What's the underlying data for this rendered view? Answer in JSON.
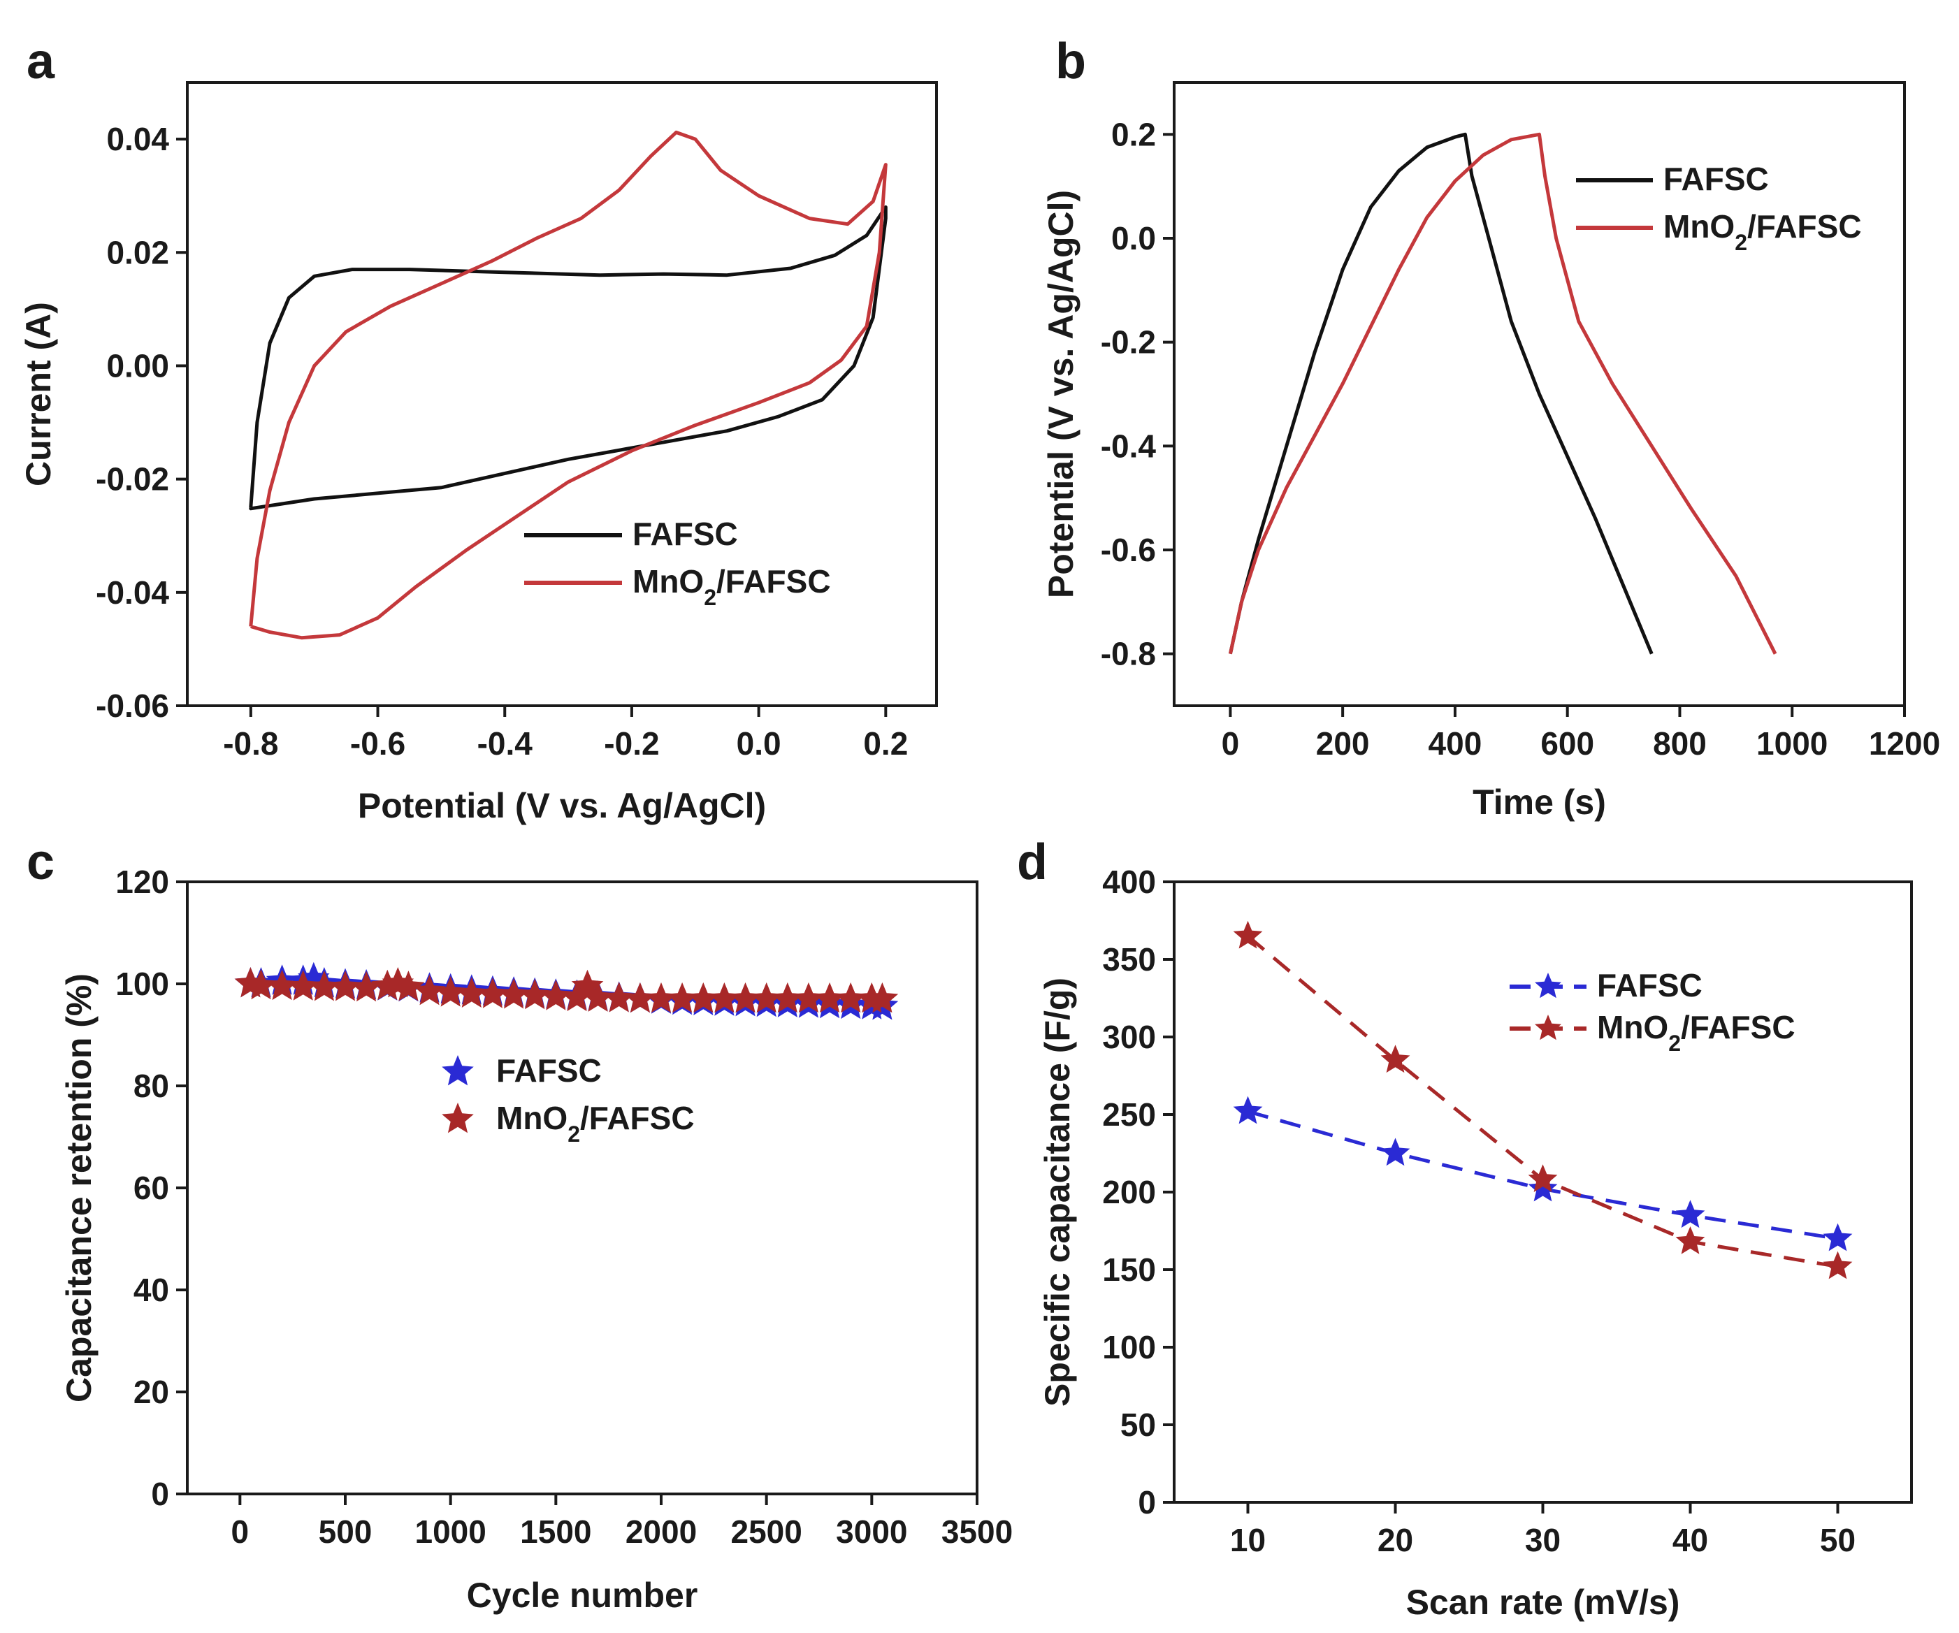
{
  "colors": {
    "fafsc_line": "#111111",
    "mno2_line": "#c4383b",
    "fafsc_marker": "#2a2ad4",
    "mno2_marker": "#a82828",
    "axis": "#1a1a1a"
  },
  "chart_data": [
    {
      "panel": "a",
      "type": "line",
      "xlabel": "Potential (V vs. Ag/AgCl)",
      "ylabel": "Current (A)",
      "xlim": [
        -0.9,
        0.28
      ],
      "ylim": [
        -0.06,
        0.05
      ],
      "xticks": [
        -0.8,
        -0.6,
        -0.4,
        -0.2,
        0.0,
        0.2
      ],
      "xtick_labels": [
        "-0.8",
        "-0.6",
        "-0.4",
        "-0.2",
        "0.0",
        "0.2"
      ],
      "yticks": [
        -0.06,
        -0.04,
        -0.02,
        0.0,
        0.02,
        0.04
      ],
      "ytick_labels": [
        "-0.06",
        "-0.04",
        "-0.02",
        "0.00",
        "0.02",
        "0.04"
      ],
      "legend_position": "bottom-right",
      "series": [
        {
          "name": "FAFSC",
          "color": "#111111",
          "legend_main": "FAFSC",
          "legend_sub": "",
          "legend_tail": "",
          "x": [
            -0.8,
            -0.79,
            -0.77,
            -0.74,
            -0.7,
            -0.64,
            -0.55,
            -0.4,
            -0.25,
            -0.15,
            -0.05,
            0.05,
            0.12,
            0.17,
            0.2,
            0.2,
            0.18,
            0.15,
            0.1,
            0.03,
            -0.05,
            -0.15,
            -0.3,
            -0.5,
            -0.7,
            -0.8,
            -0.8
          ],
          "y": [
            -0.025,
            -0.01,
            0.004,
            0.012,
            0.0158,
            0.017,
            0.017,
            0.0165,
            0.016,
            0.0162,
            0.016,
            0.0172,
            0.0195,
            0.023,
            0.028,
            0.026,
            0.0085,
            0.0,
            -0.006,
            -0.009,
            -0.0115,
            -0.0135,
            -0.0165,
            -0.0215,
            -0.0235,
            -0.0252,
            -0.025
          ]
        },
        {
          "name": "MnO2/FAFSC",
          "color": "#c4383b",
          "legend_main": "MnO",
          "legend_sub": "2",
          "legend_tail": "/FAFSC",
          "x": [
            -0.8,
            -0.79,
            -0.77,
            -0.74,
            -0.7,
            -0.65,
            -0.58,
            -0.5,
            -0.42,
            -0.35,
            -0.28,
            -0.22,
            -0.17,
            -0.13,
            -0.1,
            -0.06,
            0.0,
            0.08,
            0.14,
            0.18,
            0.2,
            0.19,
            0.17,
            0.13,
            0.08,
            0.0,
            -0.1,
            -0.2,
            -0.3,
            -0.38,
            -0.46,
            -0.54,
            -0.6,
            -0.66,
            -0.72,
            -0.77,
            -0.8
          ],
          "y": [
            -0.046,
            -0.034,
            -0.022,
            -0.01,
            0.0,
            0.006,
            0.0105,
            0.0145,
            0.0185,
            0.0225,
            0.026,
            0.031,
            0.037,
            0.0412,
            0.04,
            0.0345,
            0.03,
            0.026,
            0.025,
            0.029,
            0.0355,
            0.02,
            0.007,
            0.001,
            -0.003,
            -0.0065,
            -0.0105,
            -0.015,
            -0.0205,
            -0.0265,
            -0.0325,
            -0.039,
            -0.0445,
            -0.0475,
            -0.048,
            -0.047,
            -0.046
          ]
        }
      ]
    },
    {
      "panel": "b",
      "type": "line",
      "xlabel": "Time (s)",
      "ylabel": "Potential (V vs. Ag/AgCl)",
      "xlim": [
        -100,
        1200
      ],
      "ylim": [
        -0.9,
        0.3
      ],
      "xticks": [
        0,
        200,
        400,
        600,
        800,
        1000,
        1200
      ],
      "xtick_labels": [
        "0",
        "200",
        "400",
        "600",
        "800",
        "1000",
        "1200"
      ],
      "yticks": [
        -0.8,
        -0.6,
        -0.4,
        -0.2,
        0.0,
        0.2
      ],
      "ytick_labels": [
        "-0.8",
        "-0.6",
        "-0.4",
        "-0.2",
        "0.0",
        "0.2"
      ],
      "legend_position": "top-right",
      "series": [
        {
          "name": "FAFSC",
          "color": "#111111",
          "legend_main": "FAFSC",
          "legend_sub": "",
          "legend_tail": "",
          "x": [
            0,
            20,
            50,
            100,
            150,
            200,
            250,
            300,
            350,
            400,
            418,
            430,
            460,
            500,
            550,
            600,
            650,
            700,
            750
          ],
          "y": [
            -0.8,
            -0.7,
            -0.58,
            -0.4,
            -0.22,
            -0.06,
            0.06,
            0.13,
            0.175,
            0.195,
            0.2,
            0.12,
            0.0,
            -0.16,
            -0.3,
            -0.42,
            -0.54,
            -0.67,
            -0.8
          ],
          "markers": false
        },
        {
          "name": "MnO2/FAFSC",
          "color": "#c4383b",
          "legend_main": "MnO",
          "legend_sub": "2",
          "legend_tail": "/FAFSC",
          "x": [
            0,
            20,
            50,
            100,
            150,
            200,
            250,
            300,
            350,
            400,
            450,
            500,
            550,
            560,
            580,
            620,
            680,
            750,
            820,
            900,
            970
          ],
          "y": [
            -0.8,
            -0.7,
            -0.6,
            -0.48,
            -0.38,
            -0.28,
            -0.17,
            -0.06,
            0.04,
            0.11,
            0.16,
            0.19,
            0.2,
            0.12,
            0.0,
            -0.16,
            -0.28,
            -0.4,
            -0.52,
            -0.65,
            -0.8
          ],
          "markers": false
        }
      ]
    },
    {
      "panel": "c",
      "type": "scatter",
      "xlabel": "Cycle number",
      "ylabel": "Capacitance retention (%)",
      "xlim": [
        -250,
        3500
      ],
      "ylim": [
        0,
        120
      ],
      "xticks": [
        0,
        500,
        1000,
        1500,
        2000,
        2500,
        3000,
        3500
      ],
      "xtick_labels": [
        "0",
        "500",
        "1000",
        "1500",
        "2000",
        "2500",
        "3000",
        "3500"
      ],
      "yticks": [
        0,
        20,
        40,
        60,
        80,
        100,
        120
      ],
      "ytick_labels": [
        "0",
        "20",
        "40",
        "60",
        "80",
        "100",
        "120"
      ],
      "legend_position": "center-left",
      "series": [
        {
          "name": "FAFSC",
          "color": "#2a2ad4",
          "legend_main": "FAFSC",
          "legend_sub": "",
          "legend_tail": "",
          "x": [
            50,
            100,
            200,
            300,
            350,
            400,
            500,
            600,
            700,
            800,
            900,
            1000,
            1100,
            1200,
            1300,
            1400,
            1500,
            1600,
            1700,
            1800,
            1900,
            2000,
            2100,
            2200,
            2300,
            2400,
            2500,
            2600,
            2700,
            2800,
            2900,
            3000,
            3050
          ],
          "y": [
            100,
            100,
            100.5,
            100.5,
            101,
            100,
            99.8,
            99.6,
            99.4,
            99.2,
            99,
            98.8,
            98.6,
            98.4,
            98.2,
            98,
            97.8,
            97.6,
            97.4,
            97.2,
            97,
            96.8,
            96.6,
            96.5,
            96.4,
            96.3,
            96.2,
            96.1,
            96,
            95.9,
            95.8,
            95.7,
            95.6
          ]
        },
        {
          "name": "MnO2/FAFSC",
          "color": "#a82828",
          "legend_main": "MnO",
          "legend_sub": "2",
          "legend_tail": "/FAFSC",
          "x": [
            50,
            100,
            200,
            300,
            400,
            500,
            600,
            700,
            750,
            800,
            900,
            1000,
            1100,
            1200,
            1300,
            1400,
            1500,
            1600,
            1650,
            1700,
            1800,
            1900,
            2000,
            2100,
            2200,
            2300,
            2400,
            2500,
            2600,
            2700,
            2800,
            2900,
            3000,
            3050
          ],
          "y": [
            100,
            99.6,
            99.5,
            99.4,
            99.3,
            99.3,
            99.2,
            99.5,
            100,
            99.3,
            98.5,
            98.2,
            98,
            97.9,
            97.8,
            97.7,
            97.5,
            97.3,
            99.5,
            97.2,
            97.1,
            97,
            97,
            97,
            97,
            97,
            97,
            97,
            97,
            97,
            97,
            97,
            97,
            97
          ]
        }
      ]
    },
    {
      "panel": "d",
      "type": "line",
      "xlabel": "Scan rate (mV/s)",
      "ylabel": "Specific capacitance (F/g)",
      "xlim": [
        5,
        55
      ],
      "ylim": [
        0,
        400
      ],
      "xticks": [
        10,
        20,
        30,
        40,
        50
      ],
      "xtick_labels": [
        "10",
        "20",
        "30",
        "40",
        "50"
      ],
      "yticks": [
        0,
        50,
        100,
        150,
        200,
        250,
        300,
        350,
        400
      ],
      "ytick_labels": [
        "0",
        "50",
        "100",
        "150",
        "200",
        "250",
        "300",
        "350",
        "400"
      ],
      "legend_position": "top-center",
      "series": [
        {
          "name": "FAFSC",
          "color": "#2a2ad4",
          "legend_main": "FAFSC",
          "legend_sub": "",
          "legend_tail": "",
          "x": [
            10,
            20,
            30,
            40,
            50
          ],
          "y": [
            252,
            225,
            202,
            185,
            170
          ],
          "markers": true,
          "dashed": true
        },
        {
          "name": "MnO2/FAFSC",
          "color": "#a82828",
          "legend_main": "MnO",
          "legend_sub": "2",
          "legend_tail": "/FAFSC",
          "x": [
            10,
            20,
            30,
            40,
            50
          ],
          "y": [
            365,
            285,
            208,
            168,
            152
          ],
          "markers": true,
          "dashed": true
        }
      ]
    }
  ]
}
